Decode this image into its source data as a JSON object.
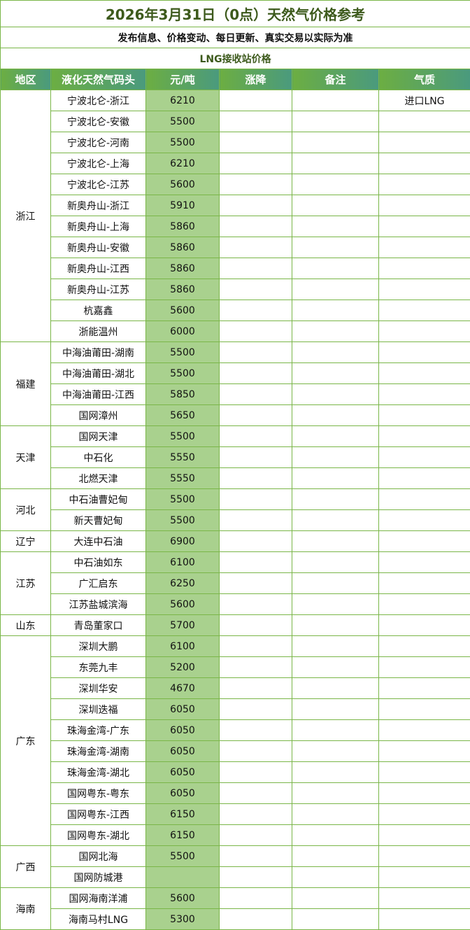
{
  "title": "2026年3月31日（0点）天然气价格参考",
  "subtitle": "发布信息、价格变动、每日更新、真实交易以实际为准",
  "section": "LNG接收站价格",
  "headers": [
    "地区",
    "液化天然气码头",
    "元/吨",
    "涨降",
    "备注",
    "气质"
  ],
  "colors": {
    "header_start": "#6cae42",
    "header_end": "#4a9a7e",
    "price_bg": "#a9d18e",
    "border": "#7ab648",
    "title": "#3d5a1c"
  },
  "regions": [
    {
      "name": "浙江",
      "rows": [
        {
          "terminal": "宁波北仑-浙江",
          "price": "6210",
          "change": "",
          "note": "",
          "quality": "进口LNG"
        },
        {
          "terminal": "宁波北仑-安徽",
          "price": "5500"
        },
        {
          "terminal": "宁波北仑-河南",
          "price": "5500"
        },
        {
          "terminal": "宁波北仑-上海",
          "price": "6210"
        },
        {
          "terminal": "宁波北仑-江苏",
          "price": "5600"
        },
        {
          "terminal": "新奥舟山-浙江",
          "price": "5910"
        },
        {
          "terminal": "新奥舟山-上海",
          "price": "5860"
        },
        {
          "terminal": "新奥舟山-安徽",
          "price": "5860"
        },
        {
          "terminal": "新奥舟山-江西",
          "price": "5860"
        },
        {
          "terminal": "新奥舟山-江苏",
          "price": "5860"
        },
        {
          "terminal": "杭嘉鑫",
          "price": "5600"
        },
        {
          "terminal": "浙能温州",
          "price": "6000"
        }
      ]
    },
    {
      "name": "福建",
      "rows": [
        {
          "terminal": "中海油莆田-湖南",
          "price": "5500"
        },
        {
          "terminal": "中海油莆田-湖北",
          "price": "5500"
        },
        {
          "terminal": "中海油莆田-江西",
          "price": "5850"
        },
        {
          "terminal": "国网漳州",
          "price": "5650"
        }
      ]
    },
    {
      "name": "天津",
      "rows": [
        {
          "terminal": "国网天津",
          "price": "5500"
        },
        {
          "terminal": "中石化",
          "price": "5550"
        },
        {
          "terminal": "北燃天津",
          "price": "5550"
        }
      ]
    },
    {
      "name": "河北",
      "rows": [
        {
          "terminal": "中石油曹妃甸",
          "price": "5500"
        },
        {
          "terminal": "新天曹妃甸",
          "price": "5500"
        }
      ]
    },
    {
      "name": "辽宁",
      "rows": [
        {
          "terminal": "大连中石油",
          "price": "6900"
        }
      ]
    },
    {
      "name": "江苏",
      "rows": [
        {
          "terminal": "中石油如东",
          "price": "6100"
        },
        {
          "terminal": "广汇启东",
          "price": "6250"
        },
        {
          "terminal": "江苏盐城滨海",
          "price": "5600"
        }
      ]
    },
    {
      "name": "山东",
      "rows": [
        {
          "terminal": "青岛董家口",
          "price": "5700"
        }
      ]
    },
    {
      "name": "广东",
      "rows": [
        {
          "terminal": "深圳大鹏",
          "price": "6100"
        },
        {
          "terminal": "东莞九丰",
          "price": "5200"
        },
        {
          "terminal": "深圳华安",
          "price": "4670"
        },
        {
          "terminal": "深圳迭福",
          "price": "6050"
        },
        {
          "terminal": "珠海金湾-广东",
          "price": "6050"
        },
        {
          "terminal": "珠海金湾-湖南",
          "price": "6050"
        },
        {
          "terminal": "珠海金湾-湖北",
          "price": "6050"
        },
        {
          "terminal": "国网粤东-粤东",
          "price": "6050"
        },
        {
          "terminal": "国网粤东-江西",
          "price": "6150"
        },
        {
          "terminal": "国网粤东-湖北",
          "price": "6150"
        }
      ]
    },
    {
      "name": "广西",
      "rows": [
        {
          "terminal": "国网北海",
          "price": "5500"
        },
        {
          "terminal": "国网防城港",
          "price": ""
        }
      ]
    },
    {
      "name": "海南",
      "rows": [
        {
          "terminal": "国网海南洋浦",
          "price": "5600"
        },
        {
          "terminal": "海南马村LNG",
          "price": "5300"
        }
      ]
    }
  ]
}
